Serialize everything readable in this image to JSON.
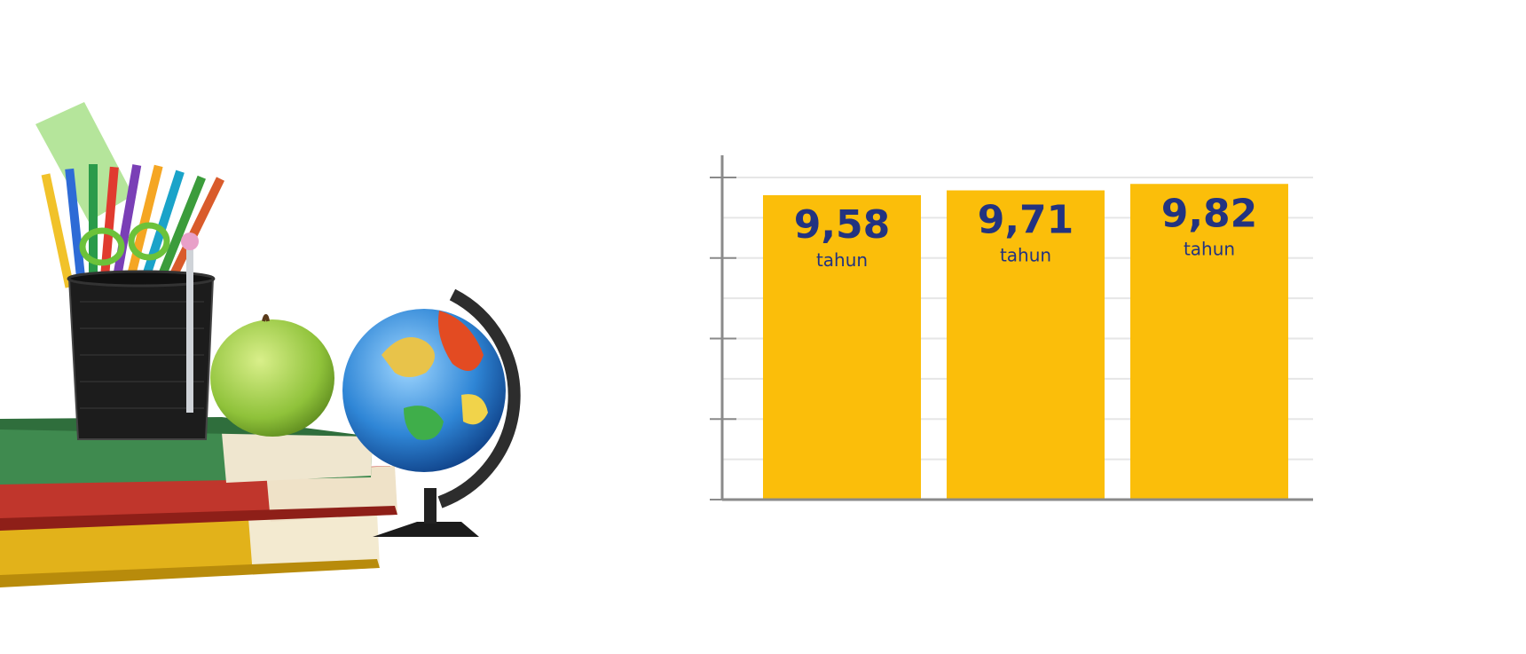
{
  "chart_data": {
    "type": "bar",
    "categories": [
      "",
      "",
      ""
    ],
    "values": [
      94.5,
      96,
      98
    ],
    "data_labels": [
      {
        "value": "9,58",
        "unit": "tahun"
      },
      {
        "value": "9,71",
        "unit": "tahun"
      },
      {
        "value": "9,82",
        "unit": "tahun"
      }
    ],
    "title": "",
    "xlabel": "",
    "ylabel": "",
    "ylim": [
      0,
      100
    ],
    "yticks": [
      "0",
      "25",
      "50",
      "75",
      "100"
    ],
    "grid": true,
    "legend": "none",
    "colors": {
      "bar": "#FBBE0A",
      "label": "#223380",
      "axis": "#8a8a8a",
      "grid": "#e6e6e6",
      "tick": "#8c8c8c"
    }
  },
  "illustration": {
    "icons": [
      "books-stack-icon",
      "pencil-cup-icon",
      "apple-icon",
      "globe-icon"
    ]
  }
}
